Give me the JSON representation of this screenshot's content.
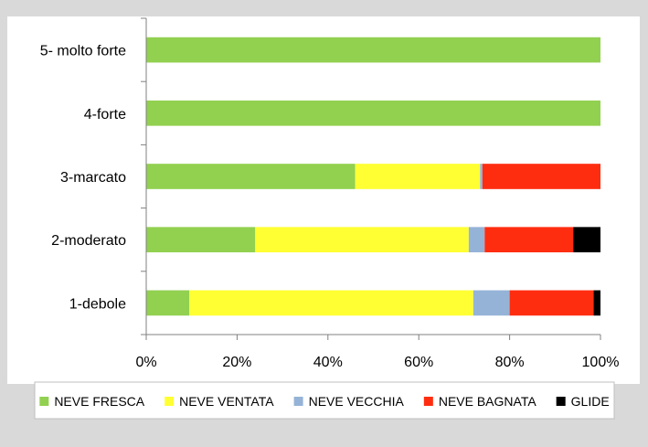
{
  "chart_data": {
    "type": "bar",
    "orientation": "horizontal",
    "stacked": true,
    "percent": true,
    "categories": [
      "1-debole",
      "2-moderato",
      "3-marcato",
      "4-forte",
      "5- molto forte"
    ],
    "series": [
      {
        "name": "NEVE FRESCA",
        "color": "#92d050",
        "values": [
          9.5,
          24,
          46,
          100,
          100
        ]
      },
      {
        "name": "NEVE VENTATA",
        "color": "#ffff33",
        "values": [
          62.5,
          47,
          27.5,
          0,
          0
        ]
      },
      {
        "name": "NEVE VECCHIA",
        "color": "#95b3d7",
        "values": [
          8,
          3.5,
          0.5,
          0,
          0
        ]
      },
      {
        "name": "NEVE BAGNATA",
        "color": "#ff2d10",
        "values": [
          18.5,
          19.5,
          26,
          0,
          0
        ]
      },
      {
        "name": "GLIDE",
        "color": "#000000",
        "values": [
          1.5,
          6,
          0,
          0,
          0
        ]
      }
    ],
    "xlim": [
      0,
      100
    ],
    "xticks": [
      "0%",
      "20%",
      "40%",
      "60%",
      "80%",
      "100%"
    ],
    "grid": false,
    "legend_position": "bottom",
    "title": "",
    "xlabel": "",
    "ylabel": ""
  }
}
